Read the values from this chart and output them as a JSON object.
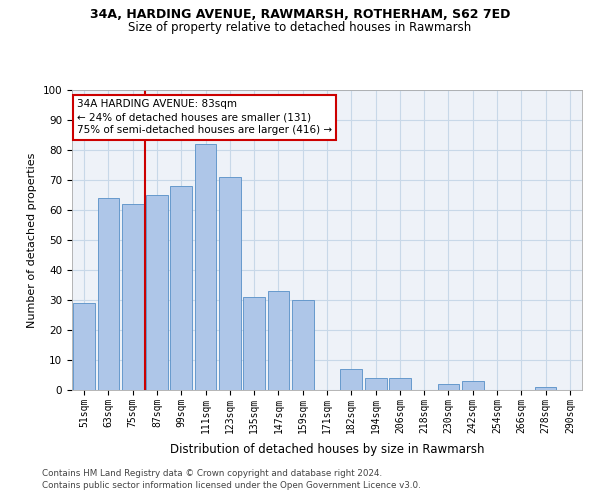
{
  "title1": "34A, HARDING AVENUE, RAWMARSH, ROTHERHAM, S62 7ED",
  "title2": "Size of property relative to detached houses in Rawmarsh",
  "xlabel": "Distribution of detached houses by size in Rawmarsh",
  "ylabel": "Number of detached properties",
  "bar_labels": [
    "51sqm",
    "63sqm",
    "75sqm",
    "87sqm",
    "99sqm",
    "111sqm",
    "123sqm",
    "135sqm",
    "147sqm",
    "159sqm",
    "171sqm",
    "182sqm",
    "194sqm",
    "206sqm",
    "218sqm",
    "230sqm",
    "242sqm",
    "254sqm",
    "266sqm",
    "278sqm",
    "290sqm"
  ],
  "bar_values": [
    29,
    64,
    62,
    65,
    68,
    82,
    71,
    31,
    33,
    30,
    0,
    7,
    4,
    4,
    0,
    2,
    3,
    0,
    0,
    1,
    0
  ],
  "bar_color": "#aec6e8",
  "bar_edge_color": "#6699cc",
  "annotation_text": "34A HARDING AVENUE: 83sqm\n← 24% of detached houses are smaller (131)\n75% of semi-detached houses are larger (416) →",
  "annotation_box_color": "#ffffff",
  "annotation_box_edge": "#cc0000",
  "vline_color": "#cc0000",
  "grid_color": "#c8d8e8",
  "background_color": "#eef2f8",
  "footer1": "Contains HM Land Registry data © Crown copyright and database right 2024.",
  "footer2": "Contains public sector information licensed under the Open Government Licence v3.0.",
  "ylim": [
    0,
    100
  ],
  "yticks": [
    0,
    10,
    20,
    30,
    40,
    50,
    60,
    70,
    80,
    90,
    100
  ],
  "vline_x": 2.5
}
